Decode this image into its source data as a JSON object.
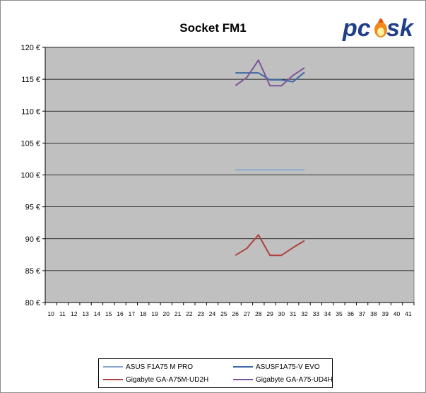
{
  "chart_data": {
    "type": "line",
    "title": "Socket FM1",
    "xlabel": "",
    "ylabel": "",
    "x": [
      10,
      11,
      12,
      13,
      14,
      15,
      16,
      17,
      18,
      19,
      20,
      21,
      22,
      23,
      24,
      25,
      26,
      27,
      28,
      29,
      30,
      31,
      32,
      33,
      34,
      35,
      36,
      37,
      38,
      39,
      40,
      41
    ],
    "ylim": [
      80,
      120
    ],
    "y_ticks": [
      "80 €",
      "85 €",
      "90 €",
      "95 €",
      "100 €",
      "105 €",
      "110 €",
      "115 €",
      "120 €"
    ],
    "y_tick_values": [
      80,
      85,
      90,
      95,
      100,
      105,
      110,
      115,
      120
    ],
    "grid": true,
    "legend_position": "bottom",
    "series": [
      {
        "name": "ASUS F1A75 M PRO",
        "color": "#8aaad0",
        "points": [
          [
            26,
            100.8
          ],
          [
            27,
            100.8
          ],
          [
            28,
            100.8
          ],
          [
            29,
            100.8
          ],
          [
            30,
            100.8
          ],
          [
            31,
            100.8
          ],
          [
            32,
            100.8
          ]
        ]
      },
      {
        "name": "ASUSF1A75-V EVO",
        "color": "#3d6aa4",
        "points": [
          [
            26,
            116
          ],
          [
            27,
            116
          ],
          [
            28,
            116
          ],
          [
            29,
            114.9
          ],
          [
            30,
            114.9
          ],
          [
            31,
            114.6
          ],
          [
            32,
            116.1
          ]
        ]
      },
      {
        "name": "Gigabyte GA-A75M-UD2H",
        "color": "#b0413e",
        "points": [
          [
            26,
            87.4
          ],
          [
            27,
            88.5
          ],
          [
            28,
            90.6
          ],
          [
            29,
            87.4
          ],
          [
            30,
            87.4
          ],
          [
            31,
            88.6
          ],
          [
            32,
            89.7
          ]
        ]
      },
      {
        "name": "Gigabyte GA-A75-UD4H",
        "color": "#7a559a",
        "points": [
          [
            26,
            114
          ],
          [
            27,
            115.3
          ],
          [
            28,
            118
          ],
          [
            29,
            114
          ],
          [
            30,
            114
          ],
          [
            31,
            115.6
          ],
          [
            32,
            116.8
          ]
        ]
      }
    ]
  },
  "logo": {
    "text": "pcask",
    "colors": {
      "primary": "#1f3f86",
      "flame": "#f08a1e"
    }
  }
}
